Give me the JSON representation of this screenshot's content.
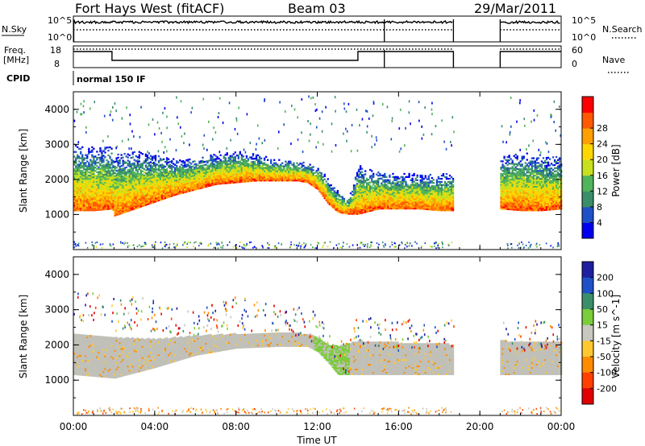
{
  "header": {
    "radar": "Fort Hays West (fitACF)",
    "beam": "Beam 03",
    "date": "29/Mar/2011"
  },
  "status_panels": {
    "nsky": {
      "label": "N.Sky",
      "ticks": [
        "10^5",
        "10^0"
      ]
    },
    "nsearch": {
      "label": "N.Search",
      "ticks": [
        "10^5",
        "10^0"
      ]
    },
    "freq": {
      "label_line1": "Freq.",
      "label_line2": "[MHz]",
      "ticks": [
        "18",
        "8"
      ]
    },
    "nave": {
      "label": "Nave",
      "ticks": [
        "60",
        "0"
      ]
    },
    "cpid": {
      "label": "CPID",
      "value": "normal 150 IF"
    }
  },
  "x_axis": {
    "label": "Time UT",
    "ticks": [
      "00:00",
      "04:00",
      "08:00",
      "12:00",
      "16:00",
      "20:00",
      "00:00"
    ],
    "range_hours": [
      0,
      24
    ]
  },
  "chart_data": [
    {
      "type": "heatmap",
      "panel": "power",
      "ylabel": "Slant Range [km]",
      "y_ticks": [
        "1000",
        "2000",
        "3000",
        "4000"
      ],
      "ylim": [
        0,
        4500
      ],
      "colorbar": {
        "label": "Power [dB]",
        "ticks": [
          "4",
          "8",
          "12",
          "16",
          "20",
          "24",
          "28"
        ],
        "range": [
          0,
          32
        ],
        "colors": [
          "#0000ee",
          "#1e50c8",
          "#3a8f6a",
          "#50b45a",
          "#c8e01e",
          "#ffd700",
          "#ffa000",
          "#ff5a00",
          "#ff0000"
        ]
      },
      "echo_band": {
        "time_hours": [
          0.0,
          1.0,
          1.9,
          2.0,
          3.0,
          4.0,
          5.0,
          6.0,
          7.0,
          8.0,
          9.0,
          10.0,
          11.0,
          11.5,
          12.0,
          12.5,
          13.0,
          13.5,
          14.0,
          15.0,
          16.0,
          17.0,
          18.0,
          18.7
        ],
        "lower_km": [
          1100,
          1100,
          1150,
          950,
          1150,
          1350,
          1550,
          1700,
          1850,
          1900,
          1950,
          1950,
          1950,
          1900,
          1700,
          1300,
          1050,
          1000,
          1000,
          1150,
          1150,
          1150,
          1100,
          1100
        ],
        "upper_km": [
          2950,
          2900,
          2900,
          2700,
          2800,
          2700,
          2550,
          2600,
          2700,
          2800,
          2700,
          2550,
          2500,
          2450,
          2350,
          2000,
          1650,
          1450,
          2400,
          2200,
          2150,
          2150,
          2150,
          2150
        ]
      },
      "echo_band_2": {
        "time_hours": [
          21.0,
          22.0,
          23.0,
          24.0
        ],
        "lower_km": [
          1150,
          1100,
          1100,
          1150
        ],
        "upper_km": [
          2700,
          2750,
          2700,
          2600
        ]
      },
      "data_gaps_hours": [
        [
          18.7,
          21.0
        ]
      ],
      "beam_change_marks_hours": [
        15.3
      ]
    },
    {
      "type": "heatmap",
      "panel": "velocity",
      "ylabel": "Slant Range [km]",
      "y_ticks": [
        "1000",
        "2000",
        "3000",
        "4000"
      ],
      "ylim": [
        0,
        4500
      ],
      "colorbar": {
        "label": "Velocity [m s^-1]",
        "ticks": [
          "200",
          "100",
          "50",
          "15",
          "-15",
          "-50",
          "-100",
          "-200"
        ],
        "range": [
          -250,
          250
        ],
        "colors": [
          "#1e1ea0",
          "#1e50c8",
          "#3a8f6a",
          "#7acc3a",
          "#c8c8c0",
          "#ffc830",
          "#ff8c00",
          "#ff4000",
          "#e00000"
        ]
      },
      "ground_scatter_band": {
        "time_hours": [
          0.0,
          2.0,
          4.0,
          6.0,
          8.0,
          10.0,
          11.5,
          12.0,
          12.5,
          13.0,
          14.0,
          16.0,
          18.7
        ],
        "lower_km": [
          1150,
          1050,
          1350,
          1700,
          1900,
          1950,
          1950,
          1800,
          1500,
          1150,
          1150,
          1150,
          1150
        ],
        "upper_km": [
          2300,
          2200,
          2150,
          2250,
          2300,
          2350,
          2300,
          2200,
          2000,
          1950,
          2100,
          2050,
          2000
        ]
      },
      "ground_scatter_band_2": {
        "time_hours": [
          21.0,
          24.0
        ],
        "lower_km": [
          1150,
          1150
        ],
        "upper_km": [
          2100,
          2050
        ]
      }
    }
  ],
  "colors": {
    "frame": "#000000",
    "background": "#ffffff",
    "ground_scatter": "#c0c0b8"
  }
}
